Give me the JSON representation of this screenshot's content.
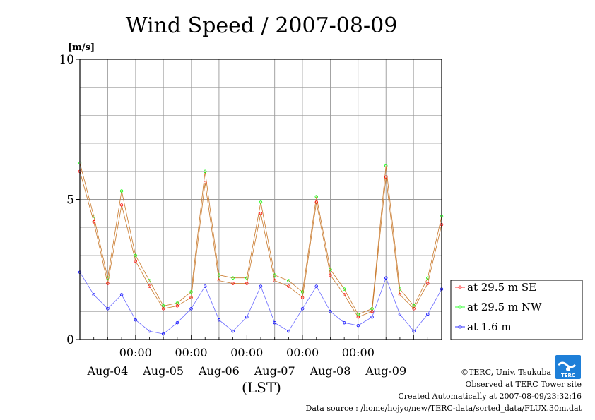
{
  "chart_data": {
    "type": "line",
    "title": "Wind Speed / 2007-08-09",
    "ylabel": "[m/s]",
    "xlabel": "(LST)",
    "ylim": [
      0,
      10
    ],
    "yticks": [
      "0",
      "5",
      "10"
    ],
    "xlim": [
      "2007-08-03 12:00",
      "2007-08-09 24:00"
    ],
    "time_ticks": [
      "00:00",
      "00:00",
      "00:00",
      "00:00",
      "00:00"
    ],
    "date_ticks": [
      "Aug-04",
      "Aug-05",
      "Aug-06",
      "Aug-07",
      "Aug-08",
      "Aug-09"
    ],
    "grid": true,
    "legend_position": "right",
    "x_hours": [
      0,
      6,
      12,
      18,
      24,
      30,
      36,
      42,
      48,
      54,
      60,
      66,
      72,
      78,
      84,
      90,
      96,
      102,
      108,
      114,
      120,
      126,
      132,
      138,
      144,
      150,
      156
    ],
    "series": [
      {
        "name": "at 29.5 m SE",
        "color": "#ff0000",
        "values": [
          6.0,
          4.2,
          2.0,
          4.8,
          2.8,
          1.9,
          1.1,
          1.2,
          1.5,
          5.6,
          2.1,
          2.0,
          2.0,
          4.5,
          2.1,
          1.9,
          1.5,
          4.9,
          2.3,
          1.6,
          0.8,
          1.0,
          5.8,
          1.6,
          1.1,
          2.0,
          4.1
        ]
      },
      {
        "name": "at 29.5 m NW",
        "color": "#00ff00",
        "values": [
          6.3,
          4.4,
          2.2,
          5.3,
          3.0,
          2.1,
          1.2,
          1.3,
          1.7,
          6.0,
          2.3,
          2.2,
          2.2,
          4.9,
          2.3,
          2.1,
          1.7,
          5.1,
          2.5,
          1.8,
          0.9,
          1.1,
          6.2,
          1.8,
          1.2,
          2.2,
          4.4
        ]
      },
      {
        "name": "at 1.6 m",
        "color": "#0000ff",
        "values": [
          2.4,
          1.6,
          1.1,
          1.6,
          0.7,
          0.3,
          0.2,
          0.6,
          1.1,
          1.9,
          0.7,
          0.3,
          0.8,
          1.9,
          0.6,
          0.3,
          1.1,
          1.9,
          1.0,
          0.6,
          0.5,
          0.8,
          2.2,
          0.9,
          0.3,
          0.9,
          1.8
        ]
      }
    ]
  },
  "footer": {
    "copyright": "©TERC, Univ. Tsukuba",
    "observed": "Observed at TERC Tower site",
    "created": "Created Automatically at 2007-08-09/23:32:16",
    "source": "Data source : /home/hojyo/new/TERC-data/sorted_data/FLUX.30m.dat"
  },
  "logo": {
    "text": "TERC",
    "color": "#1e7fd8"
  }
}
